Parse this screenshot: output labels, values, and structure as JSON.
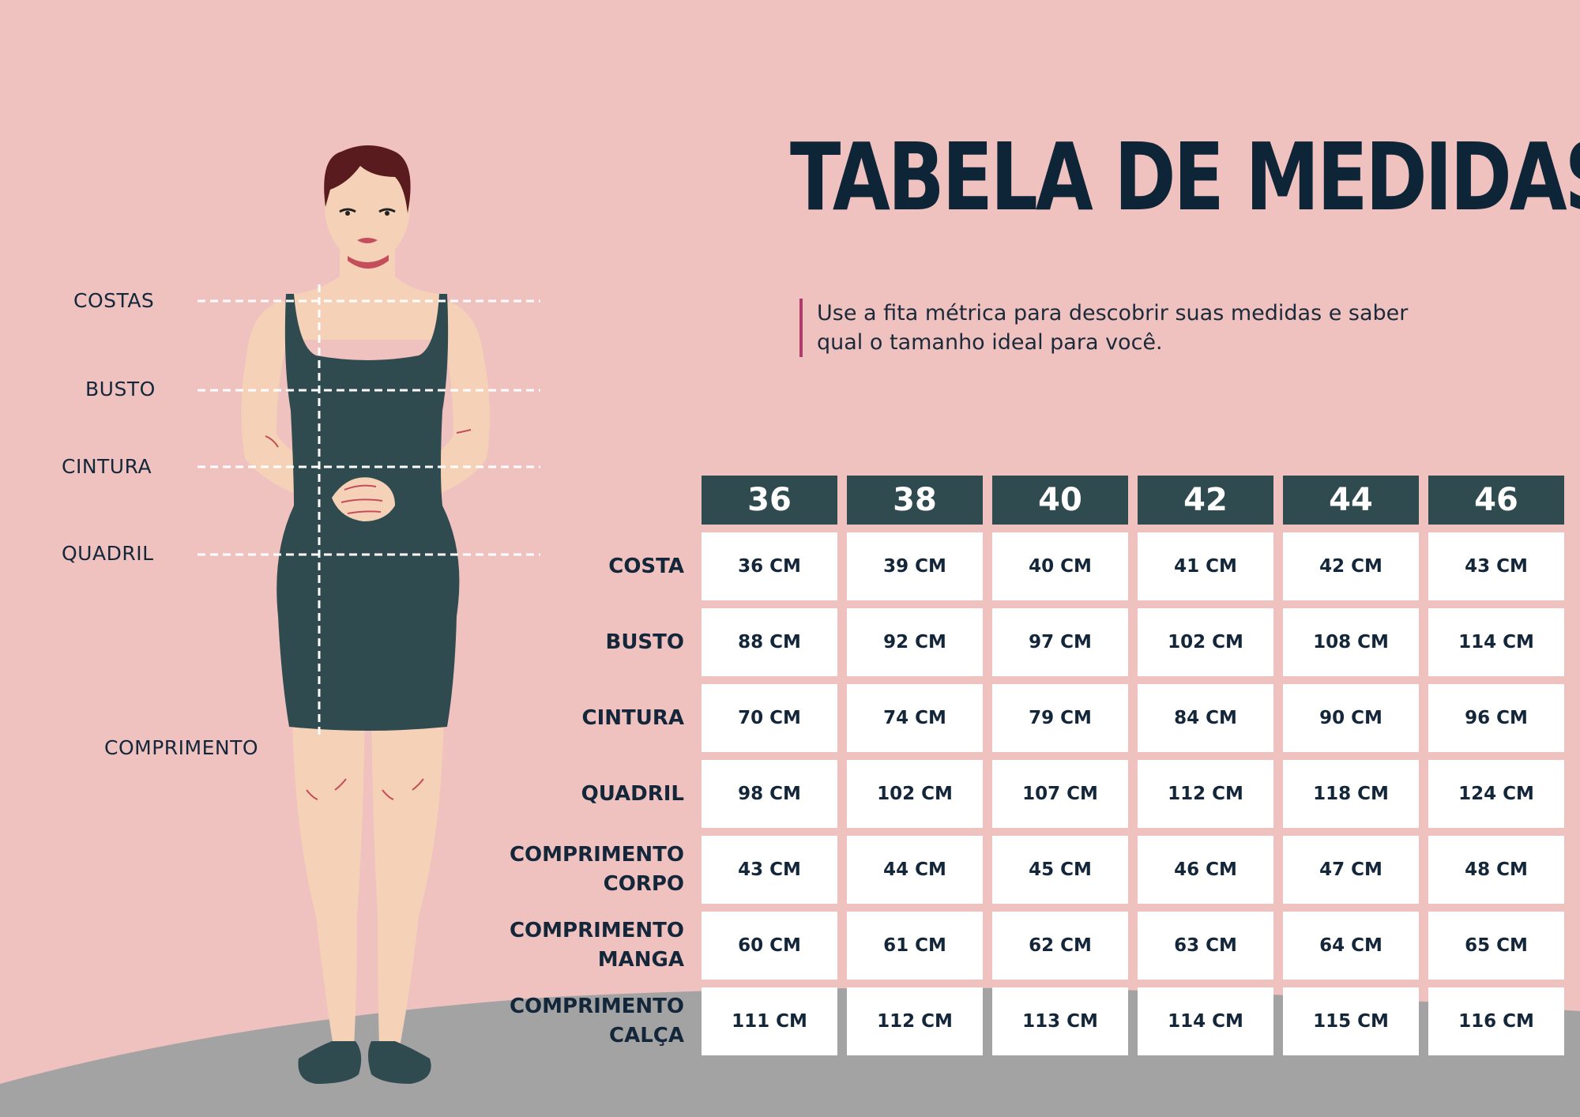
{
  "title": "TABELA DE MEDIDAS",
  "subtitle": "Use a fita métrica para descobrir suas medidas e saber qual o tamanho ideal para você.",
  "colors": {
    "background": "#efc1bf",
    "header": "#2f4b4f",
    "text": "#14273a",
    "accent": "#b03c6b",
    "floor": "#a3a3a3"
  },
  "figure_labels": {
    "costas": "COSTAS",
    "busto": "BUSTO",
    "cintura": "CINTURA",
    "quadril": "QUADRIL",
    "comprimento": "COMPRIMENTO"
  },
  "table": {
    "sizes": [
      "36",
      "38",
      "40",
      "42",
      "44",
      "46"
    ],
    "rows": [
      {
        "label": [
          "COSTA"
        ],
        "values": [
          "36 CM",
          "39 CM",
          "40 CM",
          "41 CM",
          "42 CM",
          "43 CM"
        ]
      },
      {
        "label": [
          "BUSTO"
        ],
        "values": [
          "88 CM",
          "92 CM",
          "97 CM",
          "102 CM",
          "108 CM",
          "114 CM"
        ]
      },
      {
        "label": [
          "CINTURA"
        ],
        "values": [
          "70 CM",
          "74 CM",
          "79 CM",
          "84 CM",
          "90 CM",
          "96 CM"
        ]
      },
      {
        "label": [
          "QUADRIL"
        ],
        "values": [
          "98 CM",
          "102 CM",
          "107 CM",
          "112 CM",
          "118 CM",
          "124 CM"
        ]
      },
      {
        "label": [
          "COMPRIMENTO",
          "CORPO"
        ],
        "values": [
          "43 CM",
          "44 CM",
          "45 CM",
          "46 CM",
          "47 CM",
          "48 CM"
        ]
      },
      {
        "label": [
          "COMPRIMENTO",
          "MANGA"
        ],
        "values": [
          "60 CM",
          "61 CM",
          "62 CM",
          "63 CM",
          "64 CM",
          "65 CM"
        ]
      },
      {
        "label": [
          "COMPRIMENTO",
          "CALÇA"
        ],
        "values": [
          "111 CM",
          "112 CM",
          "113 CM",
          "114 CM",
          "115 CM",
          "116 CM"
        ]
      }
    ]
  }
}
